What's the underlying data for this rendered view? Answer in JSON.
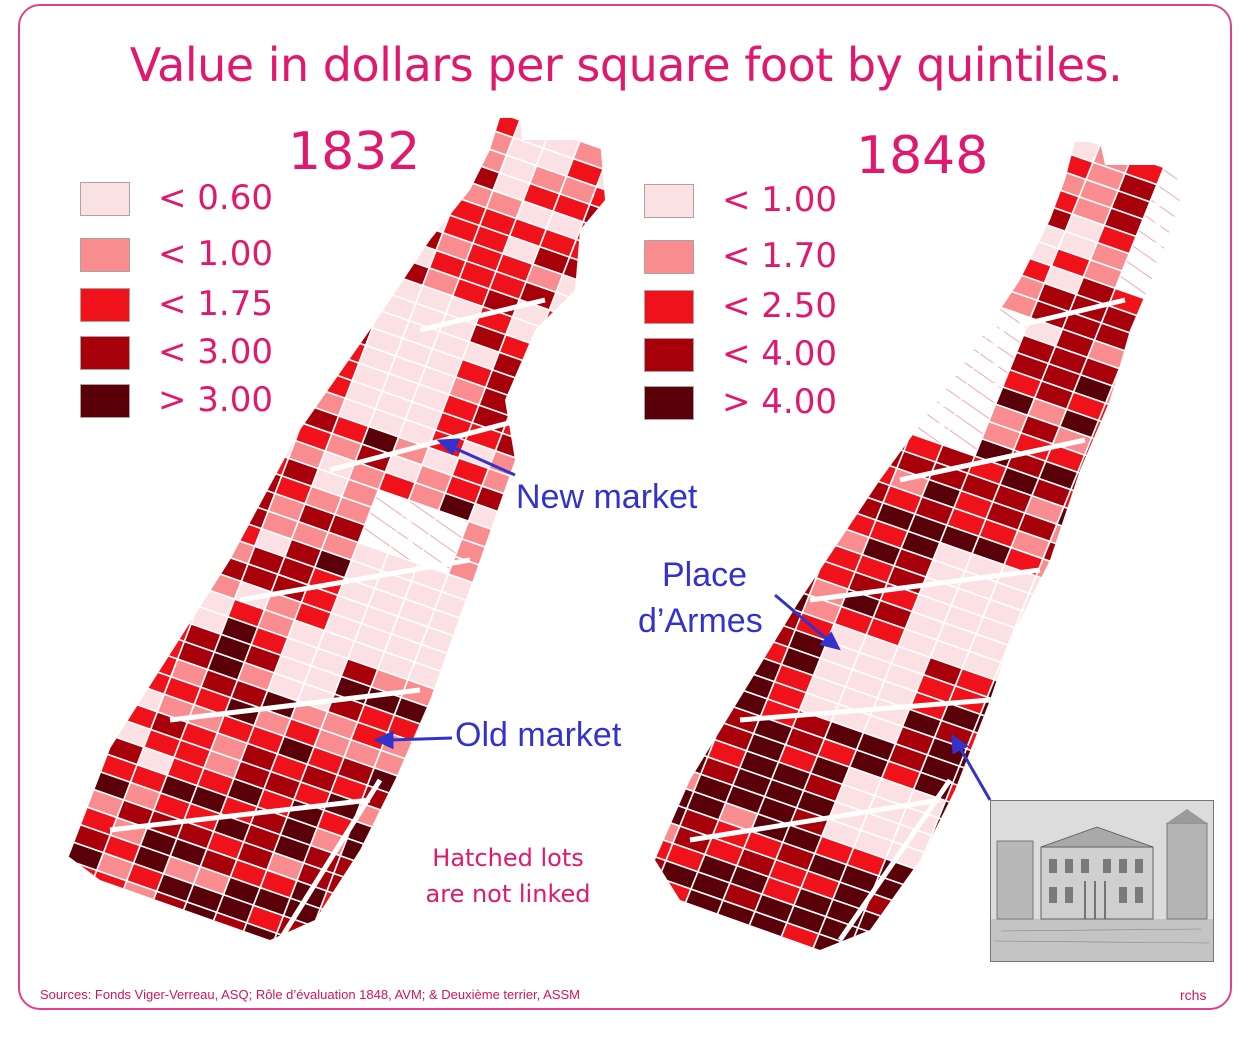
{
  "title": "Value in dollars per square foot by quintiles.",
  "maps": [
    {
      "year": "1832",
      "legend": [
        {
          "label": "< 0.60",
          "color": "#fce1e4"
        },
        {
          "label": "< 1.00",
          "color": "#f98c8f"
        },
        {
          "label": "< 1.75",
          "color": "#f0121a"
        },
        {
          "label": "< 3.00",
          "color": "#a8000a"
        },
        {
          "label": "> 3.00",
          "color": "#5a0008"
        }
      ]
    },
    {
      "year": "1848",
      "legend": [
        {
          "label": "< 1.00",
          "color": "#fce1e4"
        },
        {
          "label": "< 1.70",
          "color": "#f98c8f"
        },
        {
          "label": "< 2.50",
          "color": "#f0121a"
        },
        {
          "label": "< 4.00",
          "color": "#a8000a"
        },
        {
          "label": "> 4.00",
          "color": "#5a0008"
        }
      ]
    }
  ],
  "annotations": {
    "new_market": "New market",
    "old_market": "Old market",
    "place_line1": "Place",
    "place_line2": "d’Armes"
  },
  "note": {
    "line1": "Hatched lots",
    "line2": "are not linked"
  },
  "sources": "Sources: Fonds Viger-Verreau, ASQ; Rôle d’évaluation 1848, AVM; & Deuxième terrier, ASSM",
  "credit": "rchs",
  "colors": {
    "accent": "#e0186e",
    "arrow": "#3333cc"
  }
}
